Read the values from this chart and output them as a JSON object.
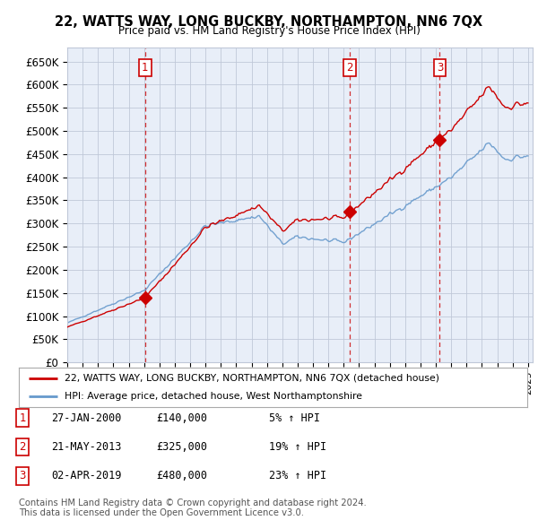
{
  "title": "22, WATTS WAY, LONG BUCKBY, NORTHAMPTON, NN6 7QX",
  "subtitle": "Price paid vs. HM Land Registry's House Price Index (HPI)",
  "ylabel_ticks": [
    "£0",
    "£50K",
    "£100K",
    "£150K",
    "£200K",
    "£250K",
    "£300K",
    "£350K",
    "£400K",
    "£450K",
    "£500K",
    "£550K",
    "£600K",
    "£650K"
  ],
  "ytick_values": [
    0,
    50000,
    100000,
    150000,
    200000,
    250000,
    300000,
    350000,
    400000,
    450000,
    500000,
    550000,
    600000,
    650000
  ],
  "xlim_start": 1995.0,
  "xlim_end": 2025.3,
  "ylim_min": 0,
  "ylim_max": 680000,
  "legend_line1": "22, WATTS WAY, LONG BUCKBY, NORTHAMPTON, NN6 7QX (detached house)",
  "legend_line2": "HPI: Average price, detached house, West Northamptonshire",
  "transaction_dates": [
    2000.07,
    2013.39,
    2019.25
  ],
  "transaction_prices": [
    140000,
    325000,
    480000
  ],
  "transaction_info": [
    {
      "num": "1",
      "date": "27-JAN-2000",
      "price": "£140,000",
      "change": "5% ↑ HPI"
    },
    {
      "num": "2",
      "date": "21-MAY-2013",
      "price": "£325,000",
      "change": "19% ↑ HPI"
    },
    {
      "num": "3",
      "date": "02-APR-2019",
      "price": "£480,000",
      "change": "23% ↑ HPI"
    }
  ],
  "footnote1": "Contains HM Land Registry data © Crown copyright and database right 2024.",
  "footnote2": "This data is licensed under the Open Government Licence v3.0.",
  "line_color_red": "#cc0000",
  "line_color_blue": "#6699cc",
  "chart_bg": "#e8eef8",
  "background_color": "#ffffff",
  "grid_color": "#c0c8d8"
}
